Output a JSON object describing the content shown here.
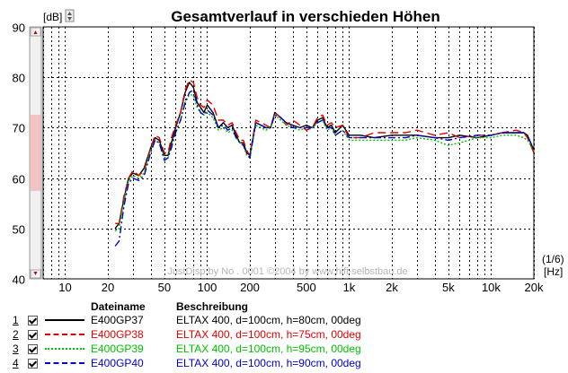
{
  "chart_data": {
    "type": "line",
    "title": "Gesamtverlauf in verschieden Höhen",
    "ylabel": "[dB]",
    "xlabel_top": "(1/6)",
    "xlabel": "[Hz]",
    "x_scale": "log",
    "xlim": [
      7,
      20000
    ],
    "ylim": [
      40,
      90
    ],
    "yticks": [
      40,
      50,
      60,
      70,
      80,
      90
    ],
    "xtick_labels": [
      {
        "v": 10,
        "t": "10"
      },
      {
        "v": 20,
        "t": "20"
      },
      {
        "v": 50,
        "t": "50"
      },
      {
        "v": 100,
        "t": "100"
      },
      {
        "v": 200,
        "t": "200"
      },
      {
        "v": 500,
        "t": "500"
      },
      {
        "v": 1000,
        "t": "1k"
      },
      {
        "v": 2000,
        "t": "2k"
      },
      {
        "v": 5000,
        "t": "5k"
      },
      {
        "v": 10000,
        "t": "10k"
      },
      {
        "v": 20000,
        "t": "20k"
      }
    ],
    "grid": true,
    "watermark": "JustDisp by No . 0001 ©2004 by www.hifi-selbstbau.de",
    "legend_headers": {
      "name": "Dateiname",
      "desc": "Beschreibung"
    },
    "series": [
      {
        "index": "1",
        "name": "E400GP37",
        "description": "ELTAX 400, d=100cm, h=80cm, 00deg",
        "color": "#000000",
        "dash": "",
        "points": [
          [
            22.5,
            50
          ],
          [
            24,
            51
          ],
          [
            26,
            56
          ],
          [
            28,
            60
          ],
          [
            30,
            61
          ],
          [
            33,
            60.5
          ],
          [
            36,
            62
          ],
          [
            40,
            66
          ],
          [
            43,
            68
          ],
          [
            46,
            67.5
          ],
          [
            50,
            64.5
          ],
          [
            53,
            64.5
          ],
          [
            56,
            67
          ],
          [
            60,
            70
          ],
          [
            65,
            73
          ],
          [
            70,
            77
          ],
          [
            75,
            79
          ],
          [
            80,
            78
          ],
          [
            85,
            75
          ],
          [
            90,
            74
          ],
          [
            95,
            73
          ],
          [
            100,
            74.5
          ],
          [
            110,
            73
          ],
          [
            120,
            70
          ],
          [
            130,
            71
          ],
          [
            140,
            70
          ],
          [
            150,
            70.5
          ],
          [
            160,
            68.5
          ],
          [
            170,
            67
          ],
          [
            180,
            67
          ],
          [
            190,
            65
          ],
          [
            200,
            64.5
          ],
          [
            220,
            71
          ],
          [
            240,
            70.5
          ],
          [
            260,
            70
          ],
          [
            280,
            70
          ],
          [
            300,
            73
          ],
          [
            330,
            72
          ],
          [
            360,
            71
          ],
          [
            400,
            70.5
          ],
          [
            450,
            70
          ],
          [
            500,
            70.5
          ],
          [
            550,
            70
          ],
          [
            600,
            71.5
          ],
          [
            650,
            72
          ],
          [
            700,
            70
          ],
          [
            750,
            70.5
          ],
          [
            800,
            69
          ],
          [
            900,
            70.5
          ],
          [
            1000,
            68.5
          ],
          [
            1200,
            68.5
          ],
          [
            1500,
            68
          ],
          [
            2000,
            68.5
          ],
          [
            2500,
            68.5
          ],
          [
            3000,
            68.5
          ],
          [
            4000,
            68
          ],
          [
            5000,
            68
          ],
          [
            6000,
            68.5
          ],
          [
            8000,
            68
          ],
          [
            10000,
            68.5
          ],
          [
            12000,
            69
          ],
          [
            15000,
            69
          ],
          [
            17000,
            69
          ],
          [
            18000,
            68.5
          ],
          [
            19000,
            67
          ],
          [
            20000,
            65.5
          ]
        ]
      },
      {
        "index": "2",
        "name": "E400GP38",
        "description": "ELTAX 400, d=100cm, h=75cm, 00deg",
        "color": "#e00000",
        "dash": "9,5",
        "points": [
          [
            22.5,
            51
          ],
          [
            24,
            51
          ],
          [
            26,
            56.5
          ],
          [
            28,
            60
          ],
          [
            30,
            61.5
          ],
          [
            33,
            60.5
          ],
          [
            36,
            61.5
          ],
          [
            40,
            66
          ],
          [
            43,
            68.5
          ],
          [
            46,
            68
          ],
          [
            50,
            65
          ],
          [
            53,
            65
          ],
          [
            56,
            68
          ],
          [
            60,
            70.5
          ],
          [
            65,
            73
          ],
          [
            70,
            77.5
          ],
          [
            75,
            79.5
          ],
          [
            80,
            79
          ],
          [
            85,
            76
          ],
          [
            90,
            74.5
          ],
          [
            95,
            74
          ],
          [
            100,
            75.5
          ],
          [
            110,
            74.5
          ],
          [
            120,
            71.5
          ],
          [
            130,
            71.5
          ],
          [
            140,
            70.5
          ],
          [
            150,
            71
          ],
          [
            160,
            69
          ],
          [
            170,
            67.5
          ],
          [
            180,
            67.5
          ],
          [
            190,
            65.5
          ],
          [
            200,
            64.5
          ],
          [
            220,
            71.5
          ],
          [
            240,
            71
          ],
          [
            260,
            70.5
          ],
          [
            280,
            70
          ],
          [
            300,
            73
          ],
          [
            330,
            72
          ],
          [
            360,
            70.5
          ],
          [
            400,
            71.5
          ],
          [
            450,
            70.5
          ],
          [
            500,
            69.5
          ],
          [
            550,
            70
          ],
          [
            600,
            72
          ],
          [
            650,
            72.5
          ],
          [
            700,
            70.5
          ],
          [
            750,
            71
          ],
          [
            800,
            70
          ],
          [
            900,
            70.5
          ],
          [
            1000,
            68
          ],
          [
            1200,
            68
          ],
          [
            1500,
            69
          ],
          [
            2000,
            69
          ],
          [
            2500,
            69
          ],
          [
            3000,
            69.5
          ],
          [
            4000,
            68.5
          ],
          [
            5000,
            69
          ],
          [
            6000,
            68
          ],
          [
            8000,
            68.5
          ],
          [
            10000,
            68.5
          ],
          [
            12000,
            69
          ],
          [
            15000,
            69.5
          ],
          [
            17000,
            69
          ],
          [
            18000,
            68
          ],
          [
            19000,
            66.5
          ],
          [
            20000,
            65
          ]
        ]
      },
      {
        "index": "3",
        "name": "E400GP39",
        "description": "ELTAX 400, d=100cm, h=95cm, 00deg",
        "color": "#00c000",
        "dash": "2,2",
        "points": [
          [
            22.5,
            49.5
          ],
          [
            24,
            50
          ],
          [
            26,
            55.5
          ],
          [
            28,
            59.5
          ],
          [
            30,
            60.5
          ],
          [
            33,
            60
          ],
          [
            36,
            61
          ],
          [
            40,
            65.5
          ],
          [
            43,
            67.5
          ],
          [
            46,
            67
          ],
          [
            50,
            64
          ],
          [
            53,
            64
          ],
          [
            56,
            66.5
          ],
          [
            60,
            69
          ],
          [
            65,
            71.5
          ],
          [
            70,
            75
          ],
          [
            75,
            76.5
          ],
          [
            80,
            76.5
          ],
          [
            85,
            74
          ],
          [
            90,
            73
          ],
          [
            95,
            72.5
          ],
          [
            100,
            73
          ],
          [
            110,
            72
          ],
          [
            120,
            69.5
          ],
          [
            130,
            70
          ],
          [
            140,
            69
          ],
          [
            150,
            69.5
          ],
          [
            160,
            68
          ],
          [
            170,
            67
          ],
          [
            180,
            66.5
          ],
          [
            190,
            64.5
          ],
          [
            200,
            64
          ],
          [
            220,
            70.5
          ],
          [
            240,
            70
          ],
          [
            260,
            69.5
          ],
          [
            280,
            70
          ],
          [
            300,
            72.5
          ],
          [
            330,
            71.5
          ],
          [
            360,
            70.5
          ],
          [
            400,
            70
          ],
          [
            450,
            69.5
          ],
          [
            500,
            70
          ],
          [
            550,
            70
          ],
          [
            600,
            71
          ],
          [
            650,
            71.5
          ],
          [
            700,
            69.5
          ],
          [
            750,
            70
          ],
          [
            800,
            68.5
          ],
          [
            900,
            69.5
          ],
          [
            1000,
            67.5
          ],
          [
            1200,
            67.5
          ],
          [
            1500,
            67.5
          ],
          [
            2000,
            67.5
          ],
          [
            2500,
            67.5
          ],
          [
            3000,
            68
          ],
          [
            4000,
            67.5
          ],
          [
            5000,
            66.5
          ],
          [
            6000,
            67
          ],
          [
            8000,
            68
          ],
          [
            10000,
            68
          ],
          [
            12000,
            68.5
          ],
          [
            15000,
            68.5
          ],
          [
            17000,
            68
          ],
          [
            18000,
            67.5
          ],
          [
            19000,
            66.5
          ],
          [
            20000,
            65.5
          ]
        ]
      },
      {
        "index": "4",
        "name": "E400GP40",
        "description": "ELTAX 400, d=100cm, h=90cm, 00deg",
        "color": "#0000cc",
        "dash": "8,3,2,3",
        "points": [
          [
            22.5,
            46.5
          ],
          [
            24,
            47.5
          ],
          [
            26,
            54.5
          ],
          [
            28,
            59
          ],
          [
            30,
            60
          ],
          [
            33,
            59.5
          ],
          [
            36,
            60.5
          ],
          [
            40,
            65
          ],
          [
            43,
            67.5
          ],
          [
            46,
            67
          ],
          [
            50,
            63.5
          ],
          [
            53,
            64
          ],
          [
            56,
            66
          ],
          [
            60,
            69
          ],
          [
            65,
            71.5
          ],
          [
            70,
            75
          ],
          [
            75,
            77
          ],
          [
            80,
            77.5
          ],
          [
            85,
            74.5
          ],
          [
            90,
            73
          ],
          [
            95,
            72.5
          ],
          [
            100,
            73.5
          ],
          [
            110,
            72.5
          ],
          [
            120,
            70
          ],
          [
            130,
            70.5
          ],
          [
            140,
            69.5
          ],
          [
            150,
            70
          ],
          [
            160,
            68
          ],
          [
            170,
            67
          ],
          [
            180,
            66.5
          ],
          [
            190,
            65
          ],
          [
            200,
            64
          ],
          [
            220,
            71
          ],
          [
            240,
            70.5
          ],
          [
            260,
            70
          ],
          [
            280,
            70
          ],
          [
            300,
            72.5
          ],
          [
            330,
            72
          ],
          [
            360,
            71
          ],
          [
            400,
            70
          ],
          [
            450,
            70
          ],
          [
            500,
            70
          ],
          [
            550,
            70
          ],
          [
            600,
            71
          ],
          [
            650,
            71.5
          ],
          [
            700,
            70
          ],
          [
            750,
            70
          ],
          [
            800,
            68.5
          ],
          [
            900,
            69.5
          ],
          [
            1000,
            68
          ],
          [
            1200,
            68
          ],
          [
            1500,
            68
          ],
          [
            2000,
            68
          ],
          [
            2500,
            68
          ],
          [
            3000,
            68.5
          ],
          [
            4000,
            68
          ],
          [
            5000,
            67.5
          ],
          [
            6000,
            68
          ],
          [
            8000,
            68.5
          ],
          [
            10000,
            68.5
          ],
          [
            12000,
            69
          ],
          [
            15000,
            69
          ],
          [
            17000,
            69
          ],
          [
            18000,
            68.5
          ],
          [
            19000,
            67
          ],
          [
            20000,
            65.5
          ]
        ]
      }
    ]
  }
}
